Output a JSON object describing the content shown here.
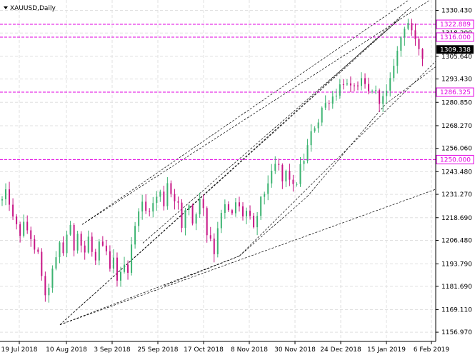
{
  "window": {
    "title": "XAUUSD,Daily",
    "menu_icon": "triangle-down-icon"
  },
  "colors": {
    "bull": "#3cb371",
    "bear": "#c71585",
    "grid": "#e0e0e0",
    "level": "#e100e1",
    "axis": "#000000",
    "price_label_bg": "#000000",
    "price_label_fg": "#ffffff",
    "trendline": "#000000"
  },
  "chart_data": {
    "type": "candlestick",
    "symbol": "XAUUSD",
    "timeframe": "Daily",
    "ylim": [
      1152.0,
      1336.0
    ],
    "x_ticks": [
      "19 Jul 2018",
      "10 Aug 2018",
      "3 Sep 2018",
      "25 Sep 2018",
      "17 Oct 2018",
      "8 Nov 2018",
      "30 Nov 2018",
      "24 Dec 2018",
      "15 Jan 2019",
      "6 Feb 2019"
    ],
    "y_ticks": [
      "1330.430",
      "1318.200",
      "1305.640",
      "1293.430",
      "1280.850",
      "1268.270",
      "1256.060",
      "1243.480",
      "1231.270",
      "1218.690",
      "1206.480",
      "1193.790",
      "1181.690",
      "1169.110",
      "1156.970"
    ],
    "current_price": "1309.338",
    "horizontal_levels": [
      "1322.889",
      "1316.000",
      "1286.325",
      "1250.000"
    ],
    "grid": true
  }
}
